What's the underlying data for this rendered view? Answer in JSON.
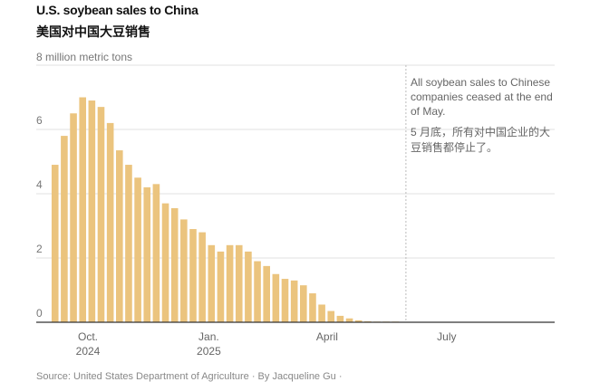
{
  "chart_data": {
    "type": "bar",
    "title": "U.S. soybean sales to China",
    "subtitle": "美国对中国大豆销售",
    "ylabel": "million metric tons",
    "ylim": [
      0,
      8
    ],
    "yticks": [
      {
        "value": 0,
        "label": "0"
      },
      {
        "value": 2,
        "label": "2"
      },
      {
        "value": 4,
        "label": "4"
      },
      {
        "value": 6,
        "label": "6"
      },
      {
        "value": 8,
        "label": "8 million metric tons"
      }
    ],
    "grid": true,
    "frequency": "weekly",
    "start_date": "2024-09-06",
    "values": [
      4.9,
      5.8,
      6.5,
      7.0,
      6.9,
      6.7,
      6.2,
      5.35,
      4.9,
      4.5,
      4.2,
      4.3,
      3.7,
      3.55,
      3.2,
      2.9,
      2.8,
      2.4,
      2.2,
      2.4,
      2.4,
      2.2,
      1.9,
      1.75,
      1.5,
      1.35,
      1.3,
      1.15,
      0.9,
      0.55,
      0.35,
      0.2,
      0.12,
      0.06,
      0.03,
      0.02,
      0.02,
      0.02
    ],
    "xticks": [
      {
        "date": "2024-10-01",
        "label": "Oct.",
        "year": "2024"
      },
      {
        "date": "2025-01-01",
        "label": "Jan.",
        "year": "2025"
      },
      {
        "date": "2025-04-01",
        "label": "April",
        "year": ""
      },
      {
        "date": "2025-07-01",
        "label": "July",
        "year": ""
      }
    ],
    "annotation": {
      "date": "2025-05-31",
      "text": "All soybean sales to Chinese companies ceased at the end of May.",
      "text_zh": "5 月底，所有对中国企业的大豆销售都停止了。"
    },
    "bar_color": "#ebc47e",
    "axis_color": "#333333",
    "grid_color": "#e2e2e2"
  },
  "footer": "Source: United States Department of Agriculture · By Jacqueline Gu ·"
}
